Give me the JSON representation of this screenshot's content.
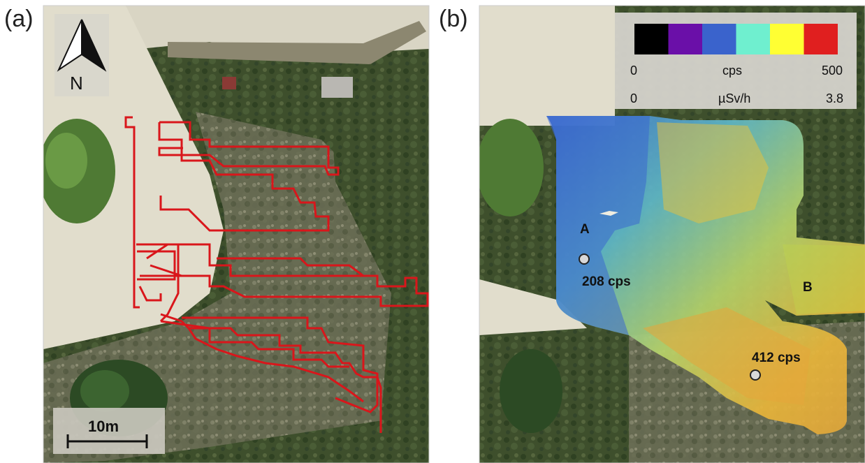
{
  "panels": {
    "a": {
      "label": "(a)"
    },
    "b": {
      "label": "(b)"
    }
  },
  "north_arrow": {
    "label": "N",
    "icon": "north-arrow-icon"
  },
  "scale_bar": {
    "label": "10m"
  },
  "legend": {
    "colors": [
      "#000000",
      "#6a0fa8",
      "#3a63cc",
      "#6fefcf",
      "#ffff33",
      "#e01f1f"
    ],
    "cps": {
      "min": "0",
      "unit": "cps",
      "max": "500"
    },
    "dose": {
      "min": "0",
      "unit": "µSv/h",
      "max": "3.8"
    }
  },
  "points": {
    "a": {
      "label": "A"
    },
    "b": {
      "label": "B"
    },
    "p208": {
      "label": "208 cps"
    },
    "p412": {
      "label": "412 cps"
    }
  },
  "track": {
    "color": "#d9161b"
  }
}
